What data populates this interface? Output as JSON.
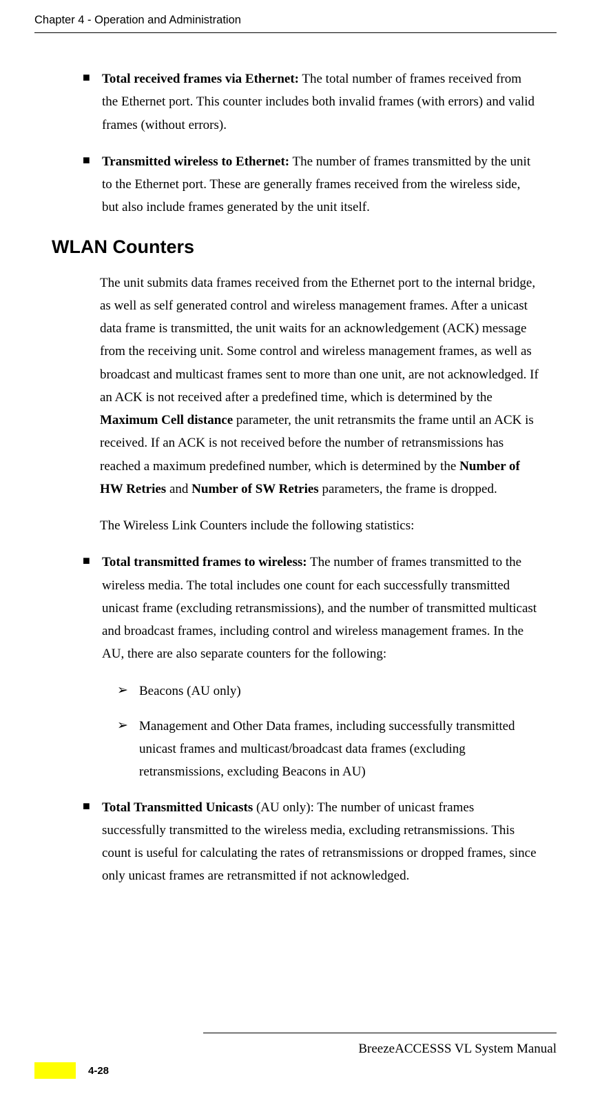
{
  "header": {
    "chapter_title": "Chapter 4 - Operation and Administration"
  },
  "bullets": {
    "item1_title": "Total received frames via Ethernet:",
    "item1_body": " The total number of frames received from the Ethernet port. This counter includes both invalid frames (with errors) and valid frames (without errors).",
    "item2_title": "Transmitted wireless to Ethernet:",
    "item2_body": " The number of frames transmitted by the unit to the Ethernet port. These are generally frames received from the wireless side, but also include frames generated by the unit itself."
  },
  "section": {
    "heading": "WLAN Counters",
    "para1_a": "The unit submits data frames received from the Ethernet port to the internal bridge, as well as self generated control and wireless management frames. After a unicast data frame is transmitted, the unit waits for an acknowledgement (ACK) message from the receiving unit. Some control and wireless management frames, as well as broadcast and multicast frames sent to more than one unit, are not acknowledged. If an ACK is not received after a predefined time, which is determined by the ",
    "para1_bold1": "Maximum Cell distance",
    "para1_b": " parameter, the unit retransmits the frame until an ACK is received. If an ACK is not received before the number of retransmissions has reached a maximum predefined number, which is determined by the ",
    "para1_bold2": "Number of HW Retries",
    "para1_c": " and ",
    "para1_bold3": "Number of SW Retries",
    "para1_d": " parameters, the frame is dropped.",
    "para2": "The Wireless Link Counters include the following statistics:"
  },
  "bullets2": {
    "item1_title": "Total transmitted frames to wireless:",
    "item1_body": " The number of frames transmitted to the wireless media. The total includes one count for each successfully transmitted unicast frame (excluding retransmissions), and the number of transmitted multicast and broadcast frames, including control and wireless management frames. In the AU, there are also separate counters for the following:",
    "sub1": "Beacons (AU only)",
    "sub2": "Management and Other Data frames, including successfully transmitted unicast frames and multicast/broadcast data frames (excluding retransmissions, excluding Beacons in AU)",
    "item2_title": "Total Transmitted Unicasts",
    "item2_body": " (AU only): The number of unicast frames successfully transmitted to the wireless media, excluding retransmissions. This count is useful for calculating the rates of retransmissions or dropped frames, since only unicast frames are retransmitted if not acknowledged."
  },
  "footer": {
    "manual_name": "BreezeACCESSS VL System Manual",
    "page_number": "4-28"
  },
  "markers": {
    "square": "■",
    "arrow": "➢"
  }
}
